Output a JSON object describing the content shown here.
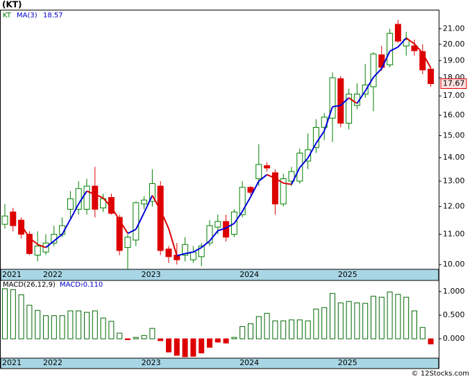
{
  "chart_data": {
    "type": "candlestick",
    "title": "(KT)",
    "symbol": "KT",
    "categories": [
      "2021",
      null,
      null,
      null,
      null,
      "2022",
      null,
      null,
      null,
      null,
      null,
      null,
      null,
      null,
      null,
      null,
      null,
      "2023",
      null,
      null,
      null,
      null,
      null,
      null,
      null,
      null,
      null,
      null,
      null,
      "2024",
      null,
      null,
      null,
      null,
      null,
      null,
      null,
      null,
      null,
      null,
      null,
      "2025",
      null,
      null,
      null,
      null,
      null,
      null,
      null,
      null,
      null,
      null,
      null
    ],
    "open": [
      11.35,
      11.8,
      11.5,
      11.0,
      10.3,
      10.4,
      10.7,
      11.0,
      11.9,
      11.9,
      11.9,
      12.8,
      11.95,
      12.35,
      11.6,
      10.55,
      10.8,
      12.1,
      12.2,
      12.8,
      10.5,
      10.3,
      10.3,
      10.15,
      10.25,
      10.7,
      11.25,
      11.45,
      11.0,
      11.7,
      12.75,
      13.1,
      13.65,
      13.35,
      12.1,
      13.0,
      13.0,
      13.85,
      14.45,
      15.4,
      15.85,
      17.95,
      15.6,
      16.5,
      17.1,
      17.5,
      19.35,
      18.75,
      21.3,
      19.9,
      19.9,
      19.55,
      18.5
    ],
    "high": [
      12.1,
      11.95,
      11.6,
      11.1,
      11.1,
      11.0,
      11.3,
      11.6,
      12.6,
      13.0,
      13.1,
      13.6,
      12.5,
      12.5,
      11.7,
      11.0,
      12.2,
      12.4,
      13.5,
      13.0,
      10.6,
      10.7,
      10.9,
      10.6,
      10.7,
      11.5,
      11.7,
      11.7,
      11.9,
      13.0,
      12.8,
      14.6,
      13.8,
      13.5,
      13.3,
      13.6,
      14.4,
      15.1,
      15.8,
      16.1,
      18.3,
      18.1,
      17.4,
      17.7,
      18.8,
      19.5,
      19.9,
      21.0,
      21.6,
      20.8,
      20.3,
      20.0,
      18.6
    ],
    "low": [
      11.2,
      11.1,
      10.85,
      10.3,
      10.1,
      10.3,
      10.6,
      10.9,
      11.5,
      11.7,
      11.7,
      11.6,
      11.8,
      11.7,
      10.3,
      9.85,
      10.6,
      11.9,
      12.0,
      10.3,
      10.05,
      10.0,
      10.1,
      10.05,
      9.95,
      10.6,
      11.0,
      10.75,
      10.9,
      11.6,
      12.45,
      12.8,
      13.4,
      11.7,
      12.0,
      12.8,
      12.9,
      13.5,
      14.2,
      14.8,
      14.7,
      15.4,
      15.3,
      16.3,
      16.9,
      16.2,
      18.4,
      18.6,
      20.1,
      19.3,
      19.3,
      18.2,
      17.5
    ],
    "close": [
      11.65,
      11.3,
      11.0,
      10.35,
      10.6,
      10.7,
      11.0,
      11.3,
      12.3,
      12.7,
      12.8,
      11.9,
      12.3,
      11.75,
      10.45,
      10.9,
      12.15,
      12.25,
      12.9,
      10.45,
      10.25,
      10.15,
      10.65,
      10.4,
      10.6,
      11.3,
      11.45,
      10.9,
      11.8,
      12.75,
      12.55,
      13.7,
      13.55,
      12.1,
      13.1,
      13.4,
      14.2,
      14.35,
      15.4,
      15.9,
      18.0,
      15.6,
      17.1,
      17.1,
      17.6,
      19.4,
      18.6,
      20.7,
      20.2,
      20.3,
      19.6,
      18.45,
      17.67
    ],
    "up_color": "#008000",
    "down_color": "#dd0000",
    "ma": {
      "name": "MA(3)",
      "values": [
        null,
        null,
        11.32,
        10.88,
        10.65,
        10.55,
        10.77,
        11.0,
        11.53,
        12.1,
        12.6,
        12.47,
        12.33,
        11.98,
        11.5,
        11.03,
        11.17,
        11.77,
        12.43,
        11.87,
        11.2,
        10.28,
        10.35,
        10.4,
        10.55,
        10.77,
        11.12,
        11.22,
        11.38,
        11.82,
        12.37,
        13.0,
        13.27,
        13.12,
        12.92,
        12.87,
        13.57,
        13.98,
        14.65,
        15.22,
        16.43,
        16.5,
        16.9,
        16.6,
        17.27,
        18.03,
        18.53,
        19.57,
        19.83,
        20.4,
        20.03,
        19.45,
        18.57
      ],
      "up_color": "#0000dd",
      "down_color": "#dd0000"
    },
    "log_scale": true,
    "ylim": [
      9.85,
      22.3
    ],
    "yticks": [
      {
        "value": 10,
        "label": "10.00"
      },
      {
        "value": 11,
        "label": "11.00"
      },
      {
        "value": 12,
        "label": "12.00"
      },
      {
        "value": 13,
        "label": "13.00"
      },
      {
        "value": 14,
        "label": "14.00"
      },
      {
        "value": 15,
        "label": "15.00"
      },
      {
        "value": 16,
        "label": "16.00"
      },
      {
        "value": 17,
        "label": "17.00"
      },
      {
        "value": 18,
        "label": "18.00"
      },
      {
        "value": 19,
        "label": "19.00"
      },
      {
        "value": 20,
        "label": "20.00"
      },
      {
        "value": 21,
        "label": "21.00"
      }
    ],
    "macd": {
      "name": "MACD(26,12,9)",
      "label": "MACD:",
      "values": [
        1.06,
        1.04,
        0.93,
        0.71,
        0.6,
        0.49,
        0.49,
        0.49,
        0.59,
        0.59,
        0.56,
        0.59,
        0.44,
        0.37,
        0.12,
        -0.02,
        0.03,
        0.07,
        0.22,
        -0.04,
        -0.28,
        -0.35,
        -0.38,
        -0.37,
        -0.3,
        -0.18,
        -0.07,
        -0.09,
        0.03,
        0.26,
        0.32,
        0.47,
        0.54,
        0.38,
        0.38,
        0.4,
        0.4,
        0.38,
        0.63,
        0.66,
        0.96,
        0.76,
        0.79,
        0.76,
        0.75,
        0.9,
        0.88,
        0.99,
        0.94,
        0.88,
        0.59,
        0.24,
        -0.11
      ],
      "value_labels": [
        null,
        null,
        null,
        null,
        null,
        null,
        null,
        null,
        null,
        null,
        null,
        null,
        null,
        null,
        null,
        null,
        null,
        null,
        null,
        null,
        null,
        null,
        null,
        null,
        null,
        null,
        null,
        null,
        null,
        null,
        null,
        null,
        null,
        null,
        null,
        null,
        null,
        null,
        null,
        null,
        null,
        null,
        null,
        null,
        null,
        null,
        null,
        null,
        null,
        null,
        null,
        null,
        "-0.110"
      ],
      "up_color": "#006600",
      "down_color": "#dd0000",
      "ylim": [
        -0.41,
        1.235
      ],
      "yticks": [
        {
          "value": 0,
          "label": "0.000"
        },
        {
          "value": 0.5,
          "label": "0.500"
        },
        {
          "value": 1,
          "label": "1.000"
        }
      ]
    },
    "watermark": "© 12Stocks.com"
  }
}
